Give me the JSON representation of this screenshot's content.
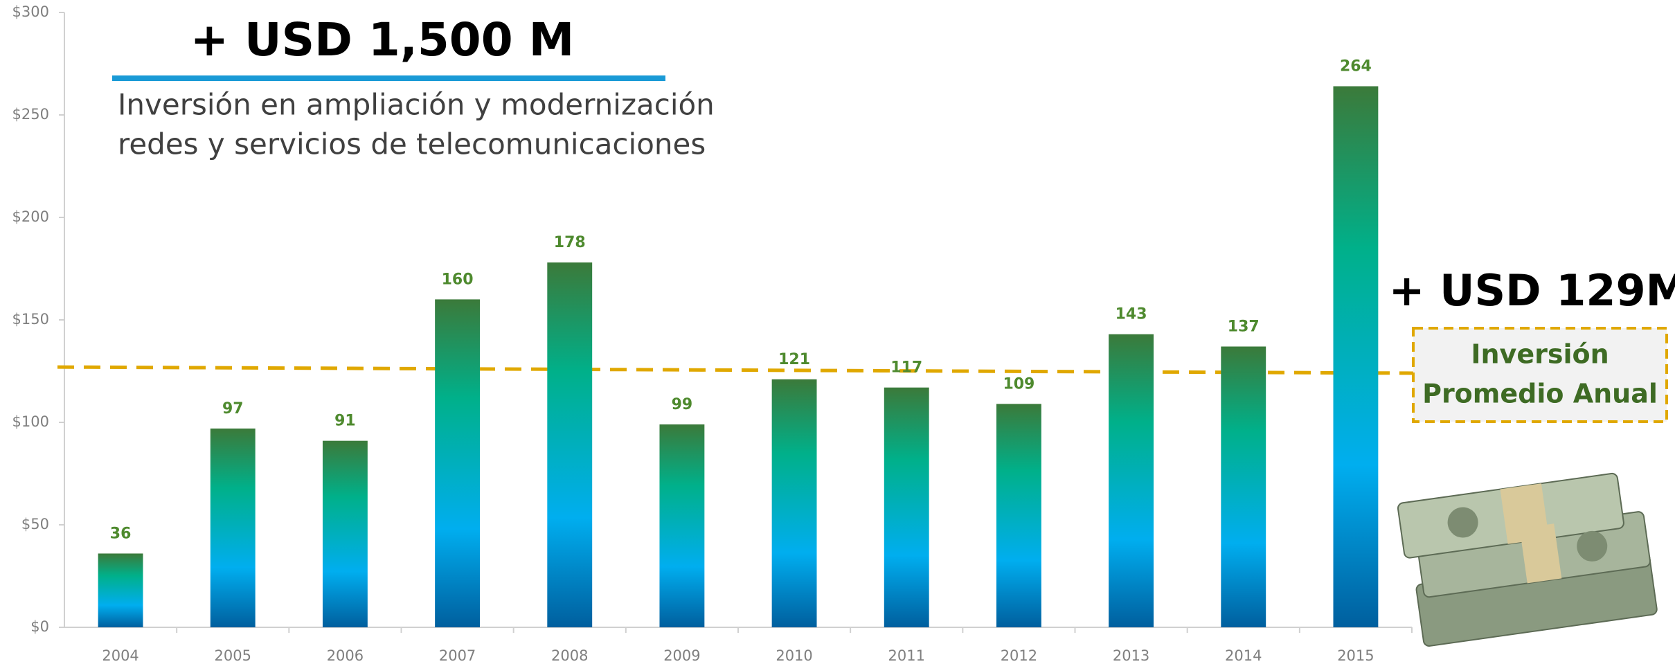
{
  "chart_data": {
    "type": "bar",
    "title": "+ USD 1,500 M",
    "subtitle": [
      "Inversión en ampliación y modernización",
      "redes y servicios de telecomunicaciones"
    ],
    "categories": [
      "2004",
      "2005",
      "2006",
      "2007",
      "2008",
      "2009",
      "2010",
      "2011",
      "2012",
      "2013",
      "2014",
      "2015"
    ],
    "values": [
      36,
      97,
      91,
      160,
      178,
      99,
      121,
      117,
      109,
      143,
      137,
      264
    ],
    "color": "#00b08a",
    "ylim": [
      0,
      300
    ],
    "yticks": [
      {
        "value": 0,
        "label": "$0"
      },
      {
        "value": 50,
        "label": "$50"
      },
      {
        "value": 100,
        "label": "$100"
      },
      {
        "value": 150,
        "label": "$150"
      },
      {
        "value": 200,
        "label": "$200"
      },
      {
        "value": 250,
        "label": "$250"
      },
      {
        "value": 300,
        "label": "$300"
      }
    ],
    "average_line": {
      "start": 127,
      "end": 124,
      "color": "#e0a800"
    },
    "average_annotation": {
      "headline": "+ USD 129M",
      "lines": [
        "Inversión",
        "Promedio Anual"
      ]
    }
  }
}
